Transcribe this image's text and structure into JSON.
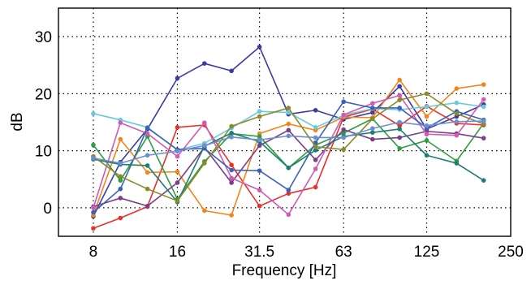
{
  "chart_data": {
    "type": "line",
    "title": "",
    "xlabel": "Frequency [Hz]",
    "ylabel": "dB",
    "x_scale": "log2",
    "xlim": [
      6,
      250
    ],
    "ylim": [
      -5,
      35
    ],
    "grid": true,
    "legend": "none",
    "x_ticks": [
      8,
      16,
      31.5,
      63,
      125,
      250
    ],
    "x_tick_labels": [
      "8",
      "16",
      "31.5",
      "63",
      "125",
      "250"
    ],
    "y_ticks": [
      0,
      10,
      20,
      30
    ],
    "y_tick_labels": [
      "0",
      "10",
      "20",
      "30"
    ],
    "x": [
      8,
      10,
      12.5,
      16,
      20,
      25,
      31.5,
      40,
      50,
      63,
      80,
      100,
      125,
      160,
      200
    ],
    "series": [
      {
        "color": "#3b3ba8",
        "values": [
          -1.5,
          8.0,
          13.8,
          22.7,
          25.3,
          24.0,
          28.2,
          16.4,
          17.1,
          15.5,
          16.7,
          21.3,
          13.8,
          16.0,
          18.1
        ]
      },
      {
        "color": "#e8312a",
        "values": [
          -3.6,
          -1.8,
          0.2,
          14.1,
          14.5,
          7.5,
          0.3,
          2.5,
          3.6,
          15.9,
          17.3,
          14.4,
          17.8,
          14.8,
          14.5
        ]
      },
      {
        "color": "#f0861c",
        "values": [
          -1.3,
          12.0,
          6.2,
          6.3,
          -0.5,
          -1.3,
          13.0,
          14.7,
          13.6,
          15.9,
          15.8,
          22.4,
          16.0,
          20.9,
          21.6
        ]
      },
      {
        "color": "#6bc9dd",
        "values": [
          16.5,
          15.4,
          14.1,
          10.1,
          11.3,
          14.0,
          16.9,
          16.7,
          14.1,
          16.2,
          17.4,
          17.2,
          17.7,
          18.4,
          17.7
        ]
      },
      {
        "color": "#2e9f3c",
        "values": [
          11.0,
          4.8,
          12.5,
          1.5,
          8.1,
          13.0,
          12.5,
          7.0,
          11.0,
          13.1,
          15.6,
          10.4,
          11.8,
          8.2,
          14.8
        ]
      },
      {
        "color": "#7a3d8c",
        "values": [
          0.2,
          1.7,
          0.3,
          4.4,
          10.6,
          4.4,
          10.9,
          13.6,
          8.4,
          13.7,
          12.0,
          12.3,
          13.4,
          13.0,
          12.2
        ]
      },
      {
        "color": "#d05ab4",
        "values": [
          0.0,
          14.9,
          13.0,
          9.0,
          14.9,
          5.2,
          3.1,
          -1.2,
          6.8,
          16.3,
          18.3,
          19.7,
          12.9,
          12.7,
          19.0
        ]
      },
      {
        "color": "#3a62b5",
        "values": [
          -0.8,
          3.3,
          14.0,
          10.2,
          10.4,
          6.6,
          6.5,
          3.1,
          11.4,
          18.6,
          17.5,
          17.5,
          14.0,
          16.9,
          15.4
        ]
      },
      {
        "color": "#1e7e74",
        "values": [
          8.5,
          7.6,
          7.4,
          1.0,
          10.8,
          13.1,
          11.6,
          7.0,
          10.1,
          12.5,
          13.2,
          13.8,
          9.2,
          7.8,
          4.8
        ]
      },
      {
        "color": "#8a8a2c",
        "values": [
          9.0,
          5.5,
          3.3,
          1.2,
          7.8,
          14.3,
          16.0,
          17.5,
          10.7,
          10.2,
          15.6,
          18.9,
          20.0,
          16.5,
          14.7
        ]
      },
      {
        "color": "#6e8ed3",
        "values": [
          8.7,
          7.8,
          9.2,
          9.9,
          10.9,
          12.4,
          11.9,
          12.6,
          12.3,
          12.3,
          13.9,
          15.0,
          14.4,
          15.1,
          15.2
        ]
      }
    ]
  }
}
